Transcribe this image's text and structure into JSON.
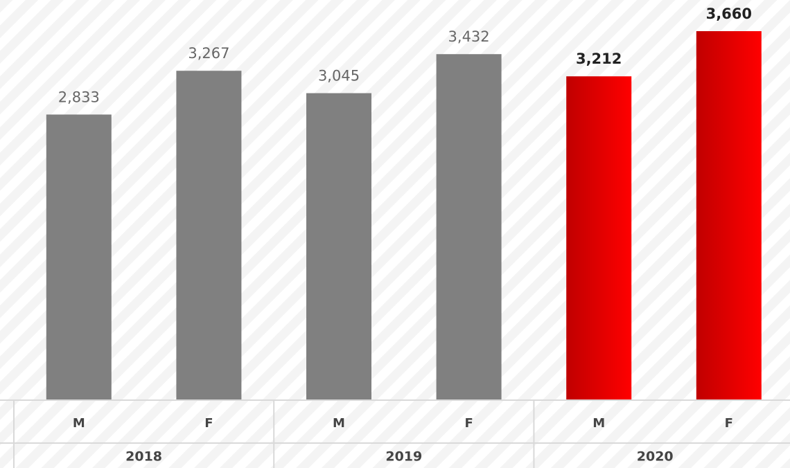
{
  "chart_data": {
    "type": "bar",
    "categories": [
      "M",
      "F",
      "M",
      "F",
      "M",
      "F"
    ],
    "group_labels": [
      "2018",
      "2019",
      "2020"
    ],
    "values": [
      2833,
      3267,
      3045,
      3432,
      3212,
      3660
    ],
    "value_labels": [
      "2,833",
      "3,267",
      "3,045",
      "3,432",
      "3,212",
      "3,660"
    ],
    "colors": [
      "#808080",
      "#808080",
      "#808080",
      "#808080",
      [
        "#c00000",
        "#ff0000"
      ],
      [
        "#c00000",
        "#ff0000"
      ]
    ],
    "bold_labels": [
      false,
      false,
      false,
      false,
      true,
      true
    ]
  }
}
